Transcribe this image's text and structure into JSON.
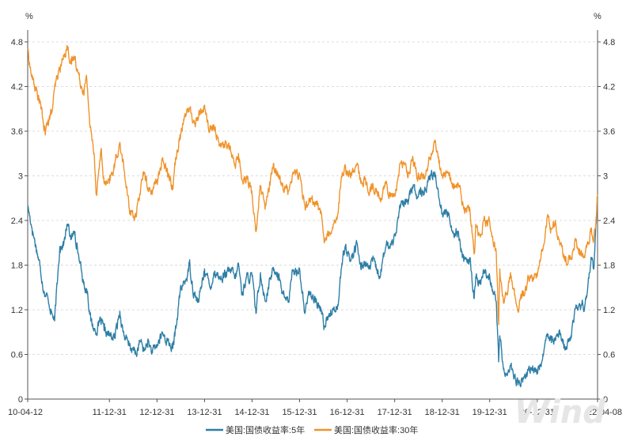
{
  "chart_data": {
    "type": "line",
    "title": "",
    "left_unit": "%",
    "right_unit": "%",
    "ylim": [
      0,
      4.8
    ],
    "yticks": [
      "0",
      "0.6",
      "1.2",
      "1.8",
      "2.4",
      "3",
      "3.6",
      "4.2",
      "4.8"
    ],
    "xticks": [
      "10-04-12",
      "11-12-31",
      "12-12-31",
      "13-12-31",
      "14-12-31",
      "15-12-31",
      "16-12-31",
      "17-12-31",
      "18-12-31",
      "19-12-31",
      "20-12-31",
      "22-04-08"
    ],
    "x_start": "2010-04-12",
    "x_end": "2022-04-08",
    "grid": "horizontal-dashed",
    "legend": "bottom",
    "watermark": "Wind",
    "series": [
      {
        "name": "美国:国债收益率:5年",
        "color": "#2e7ea6",
        "points": [
          [
            "2010-04-12",
            2.6
          ],
          [
            "2010-05-15",
            2.3
          ],
          [
            "2010-06-15",
            2.05
          ],
          [
            "2010-07-15",
            1.8
          ],
          [
            "2010-08-15",
            1.45
          ],
          [
            "2010-09-15",
            1.35
          ],
          [
            "2010-10-15",
            1.15
          ],
          [
            "2010-11-05",
            1.05
          ],
          [
            "2010-11-25",
            1.55
          ],
          [
            "2010-12-15",
            2.05
          ],
          [
            "2011-01-15",
            2.1
          ],
          [
            "2011-02-10",
            2.35
          ],
          [
            "2011-03-15",
            2.15
          ],
          [
            "2011-04-10",
            2.25
          ],
          [
            "2011-05-15",
            1.85
          ],
          [
            "2011-06-15",
            1.55
          ],
          [
            "2011-07-15",
            1.45
          ],
          [
            "2011-08-10",
            1.05
          ],
          [
            "2011-09-15",
            0.9
          ],
          [
            "2011-10-25",
            1.05
          ],
          [
            "2011-11-20",
            0.92
          ],
          [
            "2011-12-31",
            0.85
          ],
          [
            "2012-02-10",
            0.82
          ],
          [
            "2012-03-20",
            1.18
          ],
          [
            "2012-04-15",
            0.9
          ],
          [
            "2012-05-25",
            0.72
          ],
          [
            "2012-06-25",
            0.68
          ],
          [
            "2012-07-25",
            0.6
          ],
          [
            "2012-08-20",
            0.78
          ],
          [
            "2012-09-25",
            0.65
          ],
          [
            "2012-10-20",
            0.78
          ],
          [
            "2012-11-25",
            0.62
          ],
          [
            "2012-12-31",
            0.72
          ],
          [
            "2013-02-10",
            0.88
          ],
          [
            "2013-03-20",
            0.78
          ],
          [
            "2013-05-01",
            0.68
          ],
          [
            "2013-05-25",
            0.95
          ],
          [
            "2013-06-25",
            1.42
          ],
          [
            "2013-07-15",
            1.52
          ],
          [
            "2013-08-15",
            1.62
          ],
          [
            "2013-09-05",
            1.82
          ],
          [
            "2013-10-10",
            1.42
          ],
          [
            "2013-11-15",
            1.3
          ],
          [
            "2013-12-31",
            1.75
          ],
          [
            "2014-02-10",
            1.5
          ],
          [
            "2014-03-20",
            1.72
          ],
          [
            "2014-05-01",
            1.62
          ],
          [
            "2014-06-15",
            1.68
          ],
          [
            "2014-07-25",
            1.72
          ],
          [
            "2014-08-25",
            1.62
          ],
          [
            "2014-09-18",
            1.82
          ],
          [
            "2014-10-15",
            1.4
          ],
          [
            "2014-11-15",
            1.62
          ],
          [
            "2014-12-31",
            1.65
          ],
          [
            "2015-01-30",
            1.15
          ],
          [
            "2015-03-06",
            1.7
          ],
          [
            "2015-04-10",
            1.32
          ],
          [
            "2015-06-10",
            1.75
          ],
          [
            "2015-07-15",
            1.7
          ],
          [
            "2015-08-25",
            1.42
          ],
          [
            "2015-10-05",
            1.3
          ],
          [
            "2015-11-10",
            1.72
          ],
          [
            "2015-12-31",
            1.75
          ],
          [
            "2016-02-10",
            1.15
          ],
          [
            "2016-03-15",
            1.45
          ],
          [
            "2016-05-01",
            1.3
          ],
          [
            "2016-06-15",
            1.2
          ],
          [
            "2016-07-08",
            0.98
          ],
          [
            "2016-08-15",
            1.15
          ],
          [
            "2016-09-15",
            1.2
          ],
          [
            "2016-10-25",
            1.3
          ],
          [
            "2016-11-15",
            1.75
          ],
          [
            "2016-12-15",
            2.05
          ],
          [
            "2016-12-31",
            1.92
          ],
          [
            "2017-02-15",
            1.92
          ],
          [
            "2017-03-15",
            2.1
          ],
          [
            "2017-04-15",
            1.75
          ],
          [
            "2017-05-15",
            1.85
          ],
          [
            "2017-06-15",
            1.75
          ],
          [
            "2017-07-15",
            1.85
          ],
          [
            "2017-09-08",
            1.65
          ],
          [
            "2017-10-25",
            2.05
          ],
          [
            "2017-11-20",
            2.05
          ],
          [
            "2017-12-31",
            2.2
          ],
          [
            "2018-02-15",
            2.6
          ],
          [
            "2018-04-15",
            2.65
          ],
          [
            "2018-05-15",
            2.85
          ],
          [
            "2018-06-15",
            2.75
          ],
          [
            "2018-07-15",
            2.75
          ],
          [
            "2018-08-15",
            2.75
          ],
          [
            "2018-09-15",
            2.95
          ],
          [
            "2018-11-05",
            3.05
          ],
          [
            "2018-12-31",
            2.5
          ],
          [
            "2019-02-15",
            2.5
          ],
          [
            "2019-03-25",
            2.25
          ],
          [
            "2019-05-01",
            2.25
          ],
          [
            "2019-06-15",
            1.85
          ],
          [
            "2019-08-01",
            1.85
          ],
          [
            "2019-09-03",
            1.35
          ],
          [
            "2019-09-15",
            1.65
          ],
          [
            "2019-10-15",
            1.55
          ],
          [
            "2019-11-15",
            1.7
          ],
          [
            "2019-12-31",
            1.65
          ],
          [
            "2020-02-20",
            1.3
          ],
          [
            "2020-03-09",
            0.5
          ],
          [
            "2020-03-18",
            0.85
          ],
          [
            "2020-04-15",
            0.4
          ],
          [
            "2020-05-15",
            0.32
          ],
          [
            "2020-06-08",
            0.45
          ],
          [
            "2020-07-15",
            0.28
          ],
          [
            "2020-08-05",
            0.19
          ],
          [
            "2020-09-15",
            0.27
          ],
          [
            "2020-10-15",
            0.33
          ],
          [
            "2020-11-15",
            0.42
          ],
          [
            "2020-12-31",
            0.36
          ],
          [
            "2021-02-15",
            0.58
          ],
          [
            "2021-03-18",
            0.88
          ],
          [
            "2021-04-15",
            0.85
          ],
          [
            "2021-05-15",
            0.82
          ],
          [
            "2021-06-15",
            0.9
          ],
          [
            "2021-07-15",
            0.75
          ],
          [
            "2021-08-04",
            0.7
          ],
          [
            "2021-09-15",
            0.85
          ],
          [
            "2021-10-21",
            1.22
          ],
          [
            "2021-11-15",
            1.25
          ],
          [
            "2021-12-31",
            1.26
          ],
          [
            "2022-01-31",
            1.62
          ],
          [
            "2022-02-20",
            1.9
          ],
          [
            "2022-03-10",
            1.75
          ],
          [
            "2022-03-31",
            2.45
          ],
          [
            "2022-04-08",
            2.72
          ]
        ]
      },
      {
        "name": "美国:国债收益率:30年",
        "color": "#f0932b",
        "points": [
          [
            "2010-04-12",
            4.7
          ],
          [
            "2010-05-10",
            4.35
          ],
          [
            "2010-06-15",
            4.15
          ],
          [
            "2010-07-15",
            4.0
          ],
          [
            "2010-08-25",
            3.55
          ],
          [
            "2010-09-15",
            3.75
          ],
          [
            "2010-10-15",
            3.85
          ],
          [
            "2010-11-10",
            4.2
          ],
          [
            "2010-12-15",
            4.45
          ],
          [
            "2011-01-15",
            4.6
          ],
          [
            "2011-02-08",
            4.75
          ],
          [
            "2011-03-15",
            4.5
          ],
          [
            "2011-04-10",
            4.6
          ],
          [
            "2011-05-15",
            4.3
          ],
          [
            "2011-06-15",
            4.15
          ],
          [
            "2011-07-10",
            4.3
          ],
          [
            "2011-08-05",
            3.65
          ],
          [
            "2011-09-05",
            3.3
          ],
          [
            "2011-09-22",
            2.75
          ],
          [
            "2011-10-27",
            3.35
          ],
          [
            "2011-11-20",
            2.9
          ],
          [
            "2011-12-31",
            2.9
          ],
          [
            "2012-02-10",
            3.15
          ],
          [
            "2012-03-20",
            3.45
          ],
          [
            "2012-04-20",
            3.1
          ],
          [
            "2012-06-01",
            2.55
          ],
          [
            "2012-07-25",
            2.45
          ],
          [
            "2012-09-15",
            3.05
          ],
          [
            "2012-11-15",
            2.75
          ],
          [
            "2012-12-31",
            2.95
          ],
          [
            "2013-02-15",
            3.2
          ],
          [
            "2013-03-20",
            3.1
          ],
          [
            "2013-04-30",
            2.85
          ],
          [
            "2013-05-25",
            3.25
          ],
          [
            "2013-06-25",
            3.55
          ],
          [
            "2013-07-15",
            3.7
          ],
          [
            "2013-08-15",
            3.85
          ],
          [
            "2013-09-05",
            3.9
          ],
          [
            "2013-10-15",
            3.7
          ],
          [
            "2013-11-15",
            3.8
          ],
          [
            "2013-12-31",
            3.95
          ],
          [
            "2014-02-05",
            3.6
          ],
          [
            "2014-03-20",
            3.65
          ],
          [
            "2014-05-01",
            3.4
          ],
          [
            "2014-06-15",
            3.45
          ],
          [
            "2014-07-25",
            3.3
          ],
          [
            "2014-08-25",
            3.1
          ],
          [
            "2014-09-18",
            3.3
          ],
          [
            "2014-10-15",
            2.95
          ],
          [
            "2014-11-20",
            3.0
          ],
          [
            "2014-12-31",
            2.75
          ],
          [
            "2015-01-30",
            2.25
          ],
          [
            "2015-03-06",
            2.85
          ],
          [
            "2015-04-10",
            2.55
          ],
          [
            "2015-06-10",
            3.1
          ],
          [
            "2015-07-15",
            3.05
          ],
          [
            "2015-08-25",
            2.85
          ],
          [
            "2015-10-05",
            2.8
          ],
          [
            "2015-11-10",
            3.05
          ],
          [
            "2015-12-31",
            3.02
          ],
          [
            "2016-02-10",
            2.6
          ],
          [
            "2016-03-15",
            2.7
          ],
          [
            "2016-05-01",
            2.65
          ],
          [
            "2016-06-15",
            2.5
          ],
          [
            "2016-07-08",
            2.1
          ],
          [
            "2016-08-15",
            2.25
          ],
          [
            "2016-09-15",
            2.35
          ],
          [
            "2016-10-25",
            2.55
          ],
          [
            "2016-11-15",
            2.95
          ],
          [
            "2016-12-15",
            3.15
          ],
          [
            "2016-12-31",
            3.06
          ],
          [
            "2017-02-15",
            3.05
          ],
          [
            "2017-03-15",
            3.15
          ],
          [
            "2017-04-15",
            2.9
          ],
          [
            "2017-05-15",
            2.95
          ],
          [
            "2017-06-15",
            2.75
          ],
          [
            "2017-07-15",
            2.9
          ],
          [
            "2017-09-08",
            2.7
          ],
          [
            "2017-10-25",
            2.9
          ],
          [
            "2017-11-20",
            2.78
          ],
          [
            "2017-12-31",
            2.74
          ],
          [
            "2018-02-20",
            3.2
          ],
          [
            "2018-04-15",
            3.05
          ],
          [
            "2018-05-15",
            3.2
          ],
          [
            "2018-06-15",
            3.05
          ],
          [
            "2018-07-15",
            2.95
          ],
          [
            "2018-08-25",
            3.0
          ],
          [
            "2018-09-15",
            3.15
          ],
          [
            "2018-11-05",
            3.45
          ],
          [
            "2018-12-31",
            3.0
          ],
          [
            "2019-02-15",
            3.05
          ],
          [
            "2019-03-25",
            2.85
          ],
          [
            "2019-05-01",
            2.9
          ],
          [
            "2019-06-15",
            2.55
          ],
          [
            "2019-08-01",
            2.55
          ],
          [
            "2019-09-03",
            1.95
          ],
          [
            "2019-09-15",
            2.35
          ],
          [
            "2019-10-15",
            2.2
          ],
          [
            "2019-11-15",
            2.4
          ],
          [
            "2019-12-31",
            2.39
          ],
          [
            "2020-02-20",
            1.95
          ],
          [
            "2020-03-09",
            1.0
          ],
          [
            "2020-03-18",
            1.75
          ],
          [
            "2020-04-15",
            1.3
          ],
          [
            "2020-05-15",
            1.4
          ],
          [
            "2020-06-08",
            1.7
          ],
          [
            "2020-07-15",
            1.35
          ],
          [
            "2020-08-05",
            1.2
          ],
          [
            "2020-09-15",
            1.45
          ],
          [
            "2020-10-15",
            1.55
          ],
          [
            "2020-11-15",
            1.65
          ],
          [
            "2020-12-31",
            1.65
          ],
          [
            "2021-02-15",
            2.05
          ],
          [
            "2021-03-18",
            2.45
          ],
          [
            "2021-04-15",
            2.3
          ],
          [
            "2021-05-15",
            2.35
          ],
          [
            "2021-06-15",
            2.15
          ],
          [
            "2021-07-15",
            1.95
          ],
          [
            "2021-08-04",
            1.85
          ],
          [
            "2021-09-15",
            1.9
          ],
          [
            "2021-10-21",
            2.15
          ],
          [
            "2021-11-15",
            1.95
          ],
          [
            "2021-12-31",
            1.9
          ],
          [
            "2022-01-31",
            2.1
          ],
          [
            "2022-02-20",
            2.3
          ],
          [
            "2022-03-10",
            2.15
          ],
          [
            "2022-03-31",
            2.45
          ],
          [
            "2022-04-08",
            2.75
          ]
        ]
      }
    ]
  }
}
